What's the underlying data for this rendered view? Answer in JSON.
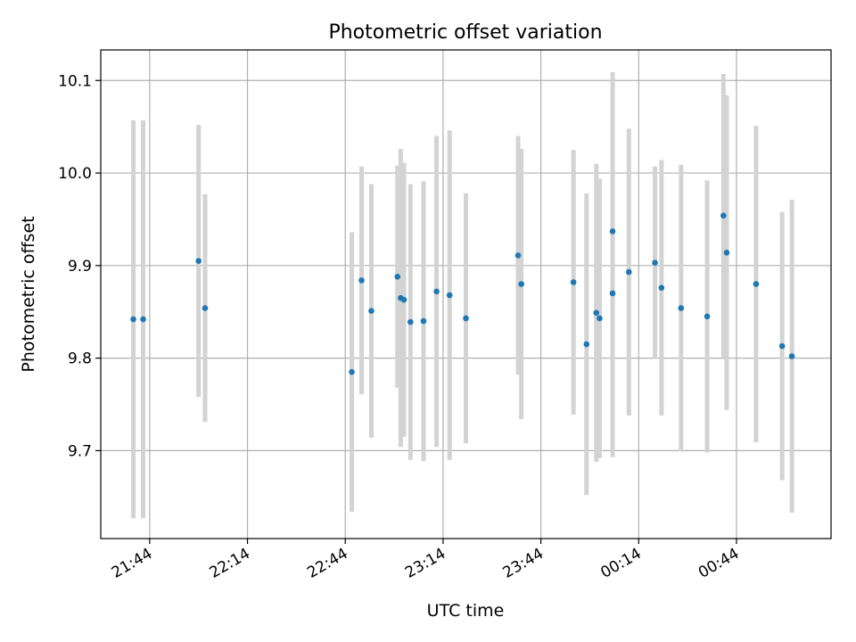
{
  "chart_data": {
    "type": "scatter",
    "title": "Photometric offset variation",
    "xlabel": "UTC time",
    "ylabel": "Photometric offset",
    "x_tick_labels": [
      "21:44",
      "22:14",
      "22:44",
      "23:14",
      "23:44",
      "00:14",
      "00:44"
    ],
    "y_tick_labels": [
      "9.7",
      "9.8",
      "9.9",
      "10.0",
      "10.1"
    ],
    "y_ticks": [
      9.7,
      9.8,
      9.9,
      10.0,
      10.1
    ],
    "xlim": [
      "21:29",
      "01:13"
    ],
    "ylim": [
      9.605,
      10.133
    ],
    "grid": true,
    "colors": {
      "point": "#1f77b4",
      "errorbar": "#d3d3d3",
      "grid": "#b0b0b0"
    },
    "points": [
      {
        "x": "21:39",
        "y": 9.842,
        "err": 0.215
      },
      {
        "x": "21:42",
        "y": 9.842,
        "err": 0.215
      },
      {
        "x": "21:59",
        "y": 9.905,
        "err": 0.147
      },
      {
        "x": "22:01",
        "y": 9.854,
        "err": 0.123
      },
      {
        "x": "22:46",
        "y": 9.785,
        "err": 0.151
      },
      {
        "x": "22:49",
        "y": 9.884,
        "err": 0.123
      },
      {
        "x": "22:52",
        "y": 9.851,
        "err": 0.137
      },
      {
        "x": "23:00",
        "y": 9.888,
        "err": 0.12
      },
      {
        "x": "23:01",
        "y": 9.865,
        "err": 0.161
      },
      {
        "x": "23:02",
        "y": 9.863,
        "err": 0.148
      },
      {
        "x": "23:04",
        "y": 9.839,
        "err": 0.149
      },
      {
        "x": "23:08",
        "y": 9.84,
        "err": 0.151
      },
      {
        "x": "23:12",
        "y": 9.872,
        "err": 0.168
      },
      {
        "x": "23:16",
        "y": 9.868,
        "err": 0.178
      },
      {
        "x": "23:21",
        "y": 9.843,
        "err": 0.135
      },
      {
        "x": "23:37",
        "y": 9.911,
        "err": 0.129
      },
      {
        "x": "23:38",
        "y": 9.88,
        "err": 0.146
      },
      {
        "x": "23:54",
        "y": 9.882,
        "err": 0.143
      },
      {
        "x": "23:58",
        "y": 9.815,
        "err": 0.163
      },
      {
        "x": "00:01",
        "y": 9.849,
        "err": 0.161
      },
      {
        "x": "00:02",
        "y": 9.843,
        "err": 0.151
      },
      {
        "x": "00:06",
        "y": 9.87,
        "err": 0.177
      },
      {
        "x": "00:06",
        "y": 9.937,
        "err": 0.172
      },
      {
        "x": "00:11",
        "y": 9.893,
        "err": 0.155
      },
      {
        "x": "00:19",
        "y": 9.903,
        "err": 0.104
      },
      {
        "x": "00:21",
        "y": 9.876,
        "err": 0.138
      },
      {
        "x": "00:27",
        "y": 9.854,
        "err": 0.155
      },
      {
        "x": "00:35",
        "y": 9.845,
        "err": 0.147
      },
      {
        "x": "00:40",
        "y": 9.954,
        "err": 0.153
      },
      {
        "x": "00:41",
        "y": 9.914,
        "err": 0.17
      },
      {
        "x": "00:50",
        "y": 9.88,
        "err": 0.171
      },
      {
        "x": "00:58",
        "y": 9.813,
        "err": 0.145
      },
      {
        "x": "01:01",
        "y": 9.802,
        "err": 0.169
      }
    ]
  }
}
